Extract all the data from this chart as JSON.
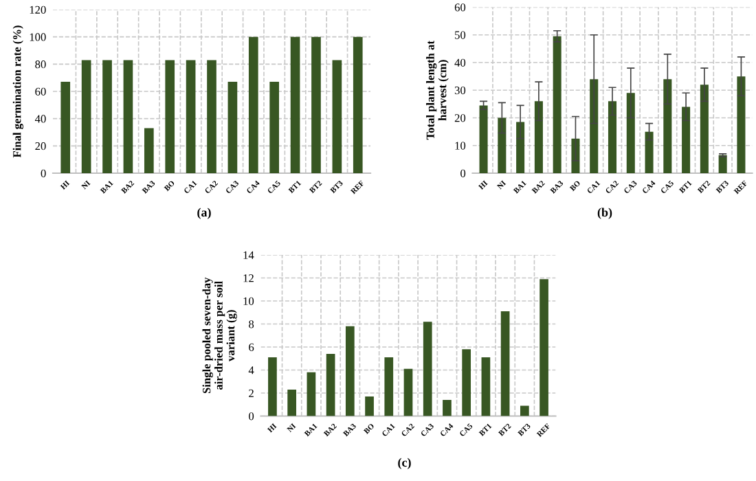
{
  "chart_data": [
    {
      "type": "bar",
      "ylabel": "Final germination rate (%)",
      "categories": [
        "HI",
        "NI",
        "BA1",
        "BA2",
        "BA3",
        "BO",
        "CA1",
        "CA2",
        "CA3",
        "CA4",
        "CA5",
        "BT1",
        "BT2",
        "BT3",
        "REF"
      ],
      "values": [
        67,
        83,
        83,
        83,
        33,
        83,
        83,
        83,
        67,
        100,
        67,
        100,
        100,
        83,
        100
      ],
      "color": "#385723",
      "ylim": [
        0,
        120
      ],
      "yticks": [
        0,
        20,
        40,
        60,
        80,
        100,
        120
      ],
      "grid": true,
      "annotations": [
        "(a)"
      ]
    },
    {
      "type": "bar",
      "ylabel": "Total plant length at\nharvest (cm)",
      "categories": [
        "HI",
        "NI",
        "BA1",
        "BA2",
        "BA3",
        "BO",
        "CA1",
        "CA2",
        "CA3",
        "CA4",
        "CA5",
        "BT1",
        "BT2",
        "BT3",
        "REF"
      ],
      "values": [
        24.5,
        20,
        18.5,
        26,
        49.5,
        12.5,
        34,
        26,
        29,
        15,
        34,
        24,
        32,
        6.5,
        35
      ],
      "errors": [
        1.5,
        5.5,
        6,
        7,
        2,
        8,
        16,
        5,
        9,
        3,
        9,
        5,
        6,
        0.5,
        7
      ],
      "color": "#385723",
      "ylim": [
        0,
        60
      ],
      "yticks": [
        0,
        10,
        20,
        30,
        40,
        50,
        60
      ],
      "grid": true,
      "annotations": [
        "(b)"
      ]
    },
    {
      "type": "bar",
      "ylabel": "Single pooled seven-day\nair-dried mass per soil\nvariant (g)",
      "categories": [
        "HI",
        "NI",
        "BA1",
        "BA2",
        "BA3",
        "BO",
        "CA1",
        "CA2",
        "CA3",
        "CA4",
        "CA5",
        "BT1",
        "BT2",
        "BT3",
        "REF"
      ],
      "values": [
        5.1,
        2.3,
        3.8,
        5.4,
        7.8,
        1.7,
        5.1,
        4.1,
        8.2,
        1.4,
        5.8,
        5.1,
        9.1,
        0.9,
        11.9
      ],
      "color": "#385723",
      "ylim": [
        0,
        14
      ],
      "yticks": [
        0,
        2,
        4,
        6,
        8,
        10,
        12,
        14
      ],
      "grid": true,
      "annotations": [
        "(c)"
      ]
    }
  ]
}
